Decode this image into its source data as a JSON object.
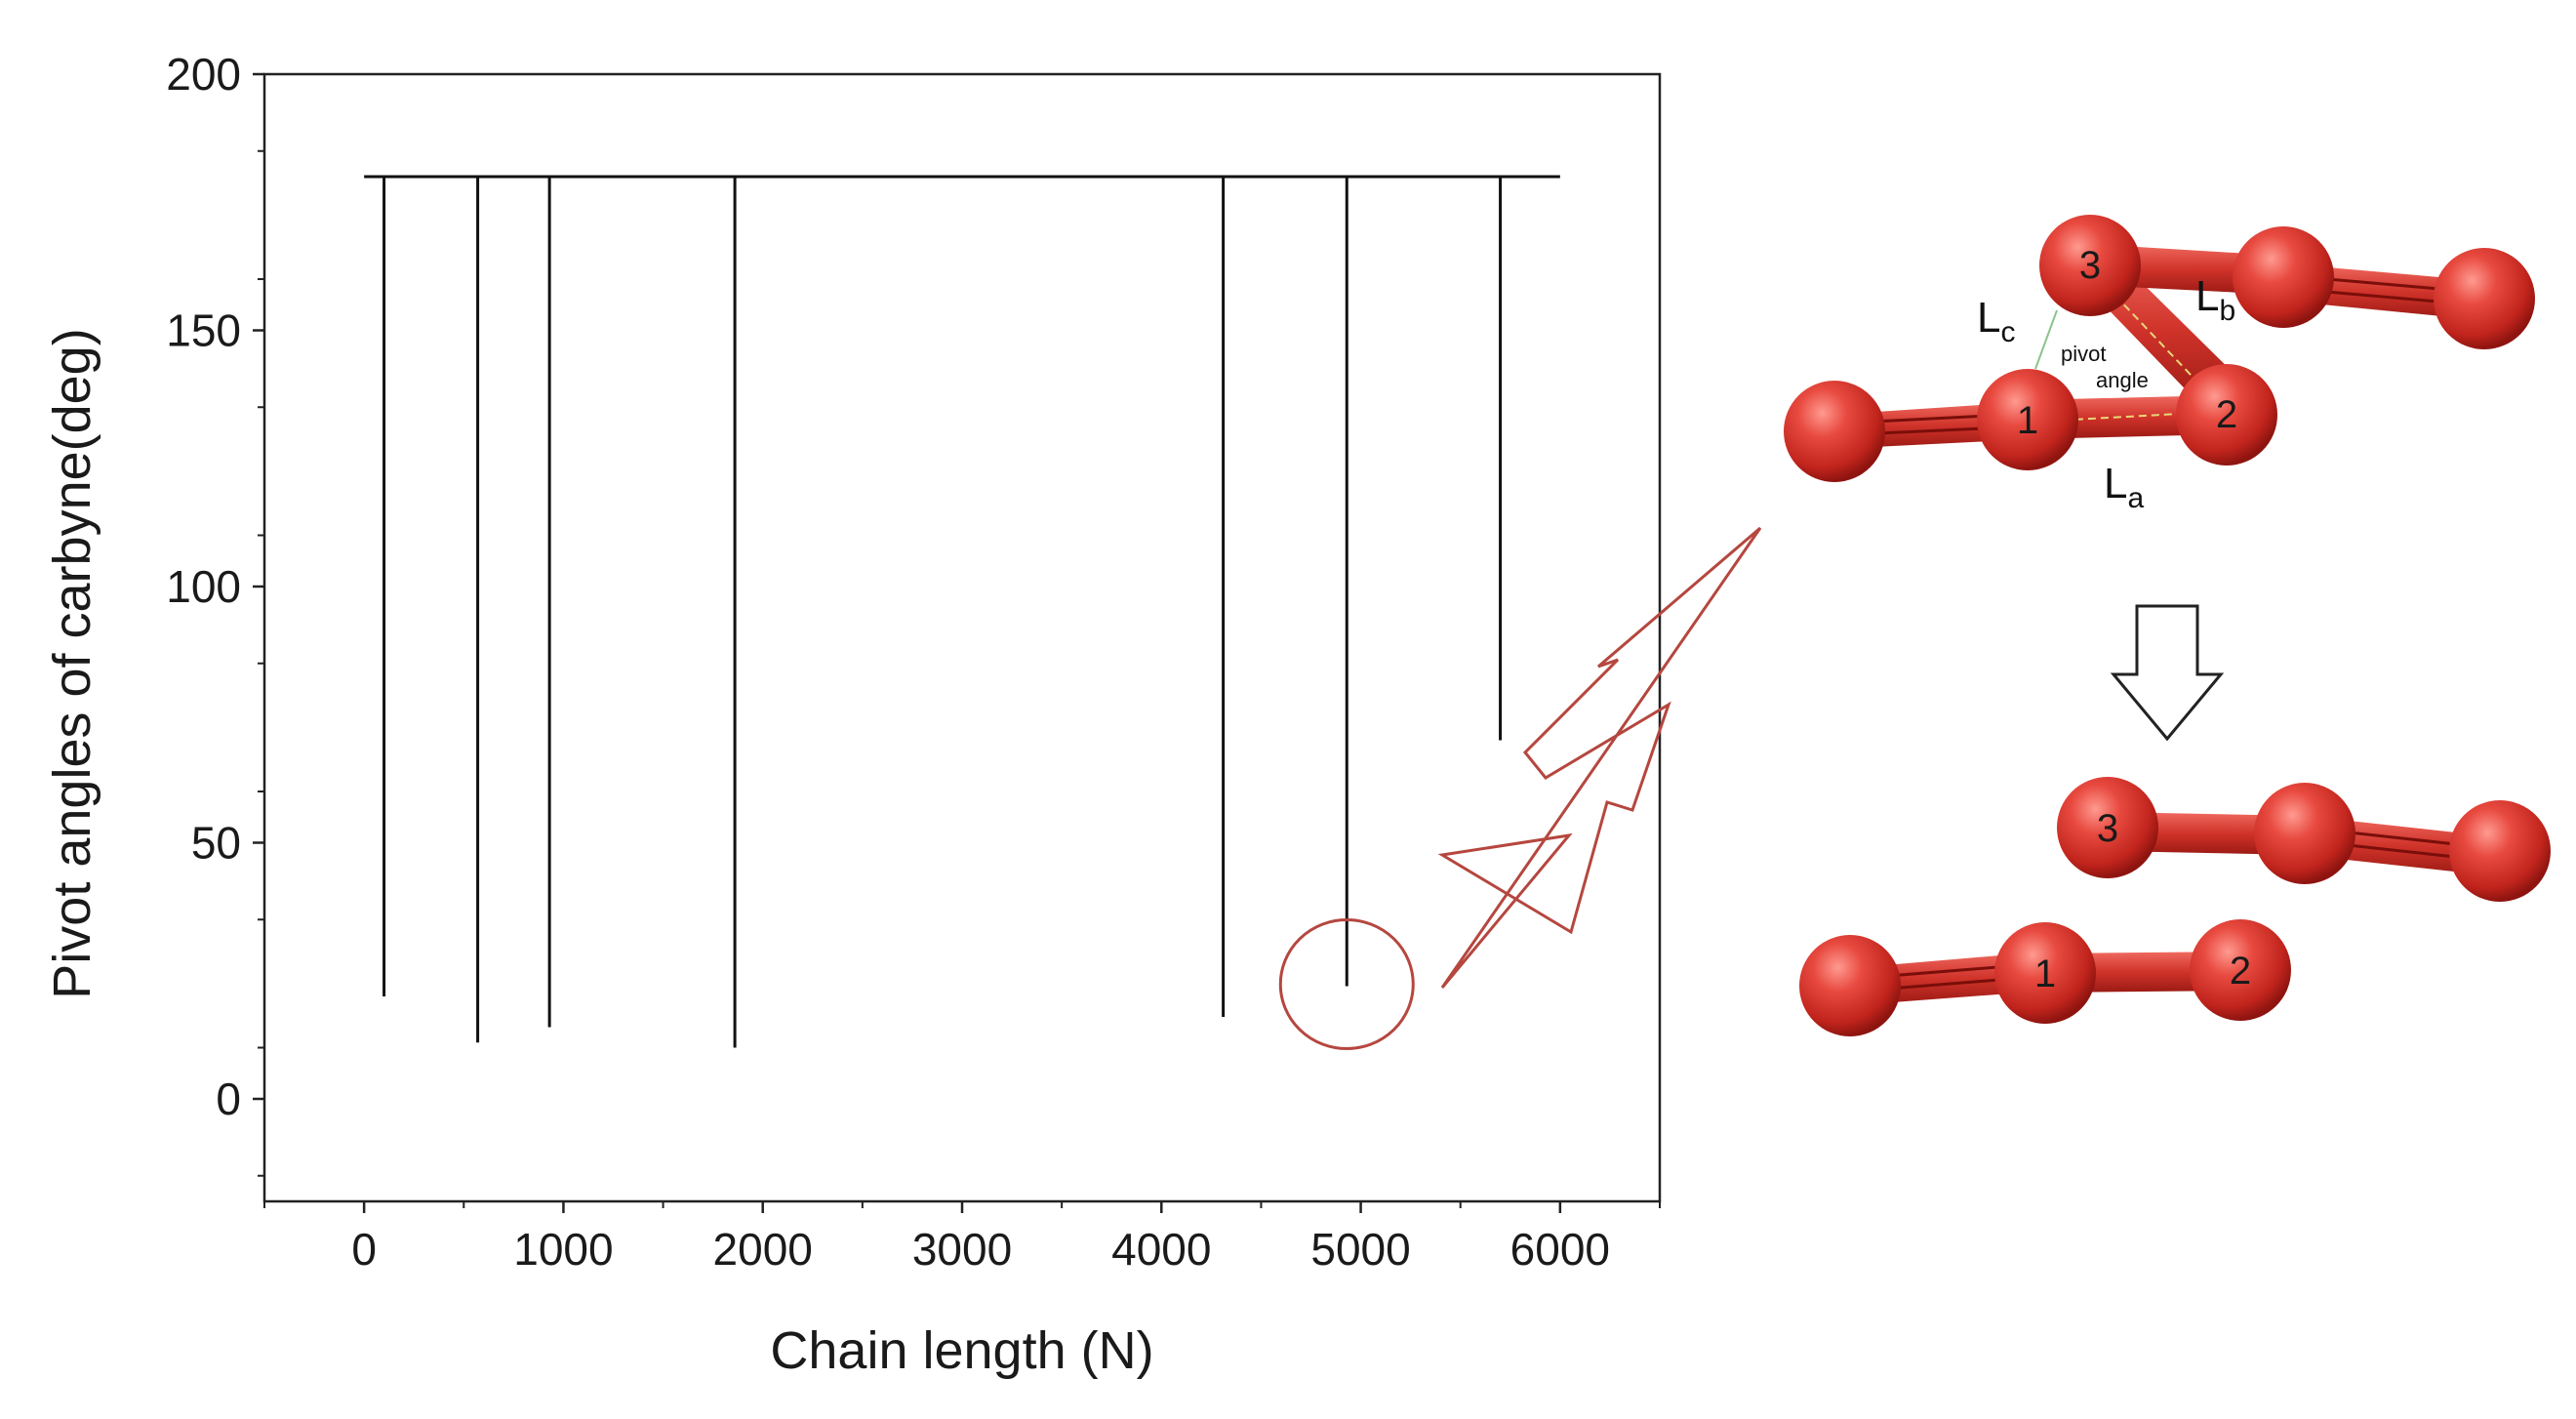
{
  "chart_data": {
    "type": "line",
    "xlabel": "Chain length (N)",
    "ylabel": "Pivot angles of carbyne(deg)",
    "xlim": [
      -500,
      6500
    ],
    "ylim": [
      -20,
      200
    ],
    "x_ticks": [
      0,
      1000,
      2000,
      3000,
      4000,
      5000,
      6000
    ],
    "y_ticks": [
      0,
      50,
      100,
      150,
      200
    ],
    "x_tick_labels": [
      "0",
      "1000",
      "2000",
      "3000",
      "4000",
      "5000",
      "6000"
    ],
    "y_tick_labels": [
      "0",
      "50",
      "100",
      "150",
      "200"
    ],
    "baseline": {
      "value": 180,
      "x_start": 0,
      "x_end": 6000
    },
    "dips": [
      {
        "x": 100,
        "y": 20
      },
      {
        "x": 570,
        "y": 11
      },
      {
        "x": 930,
        "y": 14
      },
      {
        "x": 1860,
        "y": 10
      },
      {
        "x": 4310,
        "y": 16
      },
      {
        "x": 4930,
        "y": 22
      },
      {
        "x": 5700,
        "y": 70
      }
    ],
    "highlight": {
      "x": 4930,
      "y": 22
    },
    "series_color": "#111111",
    "highlight_color": "#b5473f"
  },
  "inset": {
    "atom_color": "#e03c35",
    "atoms": [
      "1",
      "2",
      "3"
    ],
    "bonds": {
      "a": {
        "main": "L",
        "sub": "a"
      },
      "b": {
        "main": "L",
        "sub": "b"
      },
      "c": {
        "main": "L",
        "sub": "c"
      }
    },
    "angle_label_line1": "pivot",
    "angle_label_line2": "angle"
  }
}
